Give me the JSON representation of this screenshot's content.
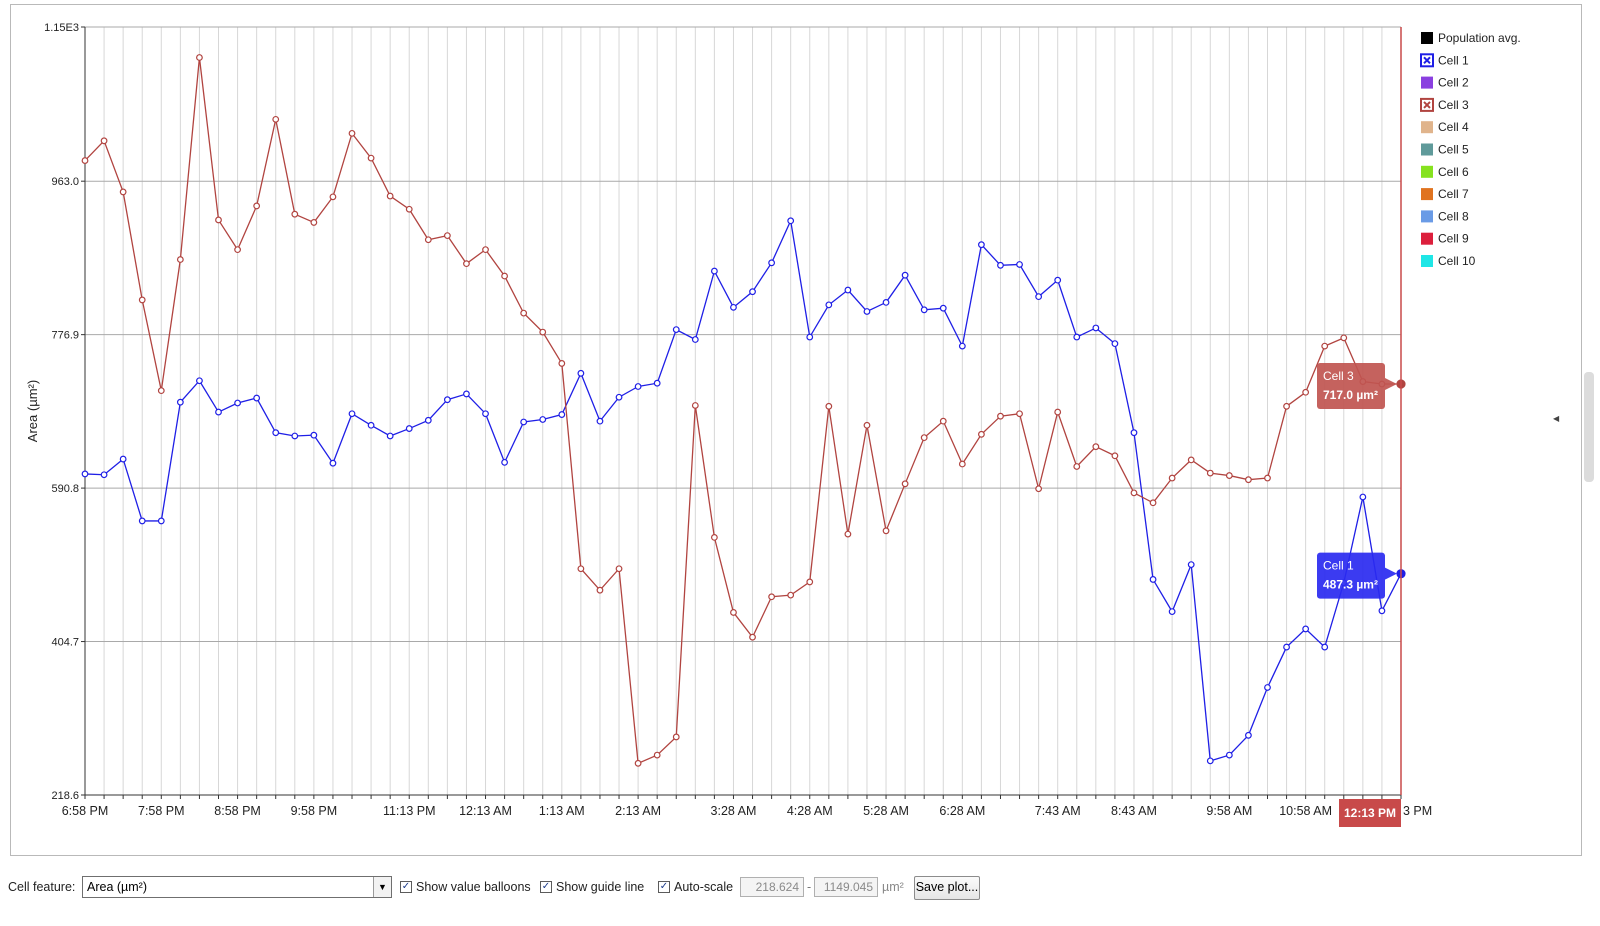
{
  "chart_data": {
    "type": "line",
    "ylabel": "Area (µm²)",
    "ylim": [
      218.6,
      1150.0
    ],
    "yticks": [
      "1.15E3",
      "963.0",
      "776.9",
      "590.8",
      "404.7",
      "218.6"
    ],
    "yticks_values": [
      1150.0,
      963.0,
      776.9,
      590.8,
      404.7,
      218.6
    ],
    "xticks": [
      "6:58 PM",
      "7:58 PM",
      "8:58 PM",
      "9:58 PM",
      "11:13 PM",
      "12:13 AM",
      "1:13 AM",
      "2:13 AM",
      "3:28 AM",
      "4:28 AM",
      "5:28 AM",
      "6:28 AM",
      "7:43 AM",
      "8:43 AM",
      "9:58 AM",
      "10:58 AM",
      "3 PM"
    ],
    "xticks_index": [
      0,
      4,
      8,
      12,
      17,
      21,
      25,
      29,
      34,
      38,
      42,
      46,
      51,
      55,
      60,
      64,
      69
    ],
    "n_points": 70,
    "grid": true,
    "legend_position": "right",
    "series": [
      {
        "name": "Cell 1",
        "color": "#1f1fe6",
        "values": [
          608,
          607,
          626,
          551,
          551,
          695,
          721,
          683,
          694,
          700,
          658,
          654,
          655,
          621,
          681,
          667,
          654,
          663,
          673,
          698,
          705,
          681,
          622,
          671,
          674,
          680,
          730,
          672,
          701,
          714,
          718,
          783,
          771,
          854,
          810,
          829,
          864,
          915,
          774,
          813,
          831,
          805,
          816,
          849,
          807,
          809,
          763,
          886,
          861,
          862,
          823,
          843,
          774,
          785,
          766,
          658,
          480,
          441,
          498,
          260,
          267,
          291,
          349,
          398,
          420,
          398,
          476,
          580,
          442,
          487
        ],
        "highlight": {
          "label": "Cell 1",
          "value": "487.3 µm²"
        }
      },
      {
        "name": "Cell 3",
        "color": "#b14440",
        "values": [
          988,
          1012,
          950,
          819,
          709,
          868,
          1113,
          916,
          880,
          933,
          1038,
          923,
          913,
          944,
          1021,
          991,
          945,
          929,
          892,
          897,
          863,
          880,
          848,
          803,
          780,
          742,
          493,
          467,
          493,
          257,
          267,
          289,
          691,
          531,
          440,
          410,
          459,
          461,
          477,
          690,
          535,
          667,
          539,
          596,
          652,
          672,
          620,
          656,
          678,
          681,
          590,
          683,
          617,
          641,
          630,
          585,
          573,
          603,
          625,
          609,
          606,
          601,
          603,
          690,
          707,
          763,
          773,
          720,
          717,
          717
        ],
        "highlight": {
          "label": "Cell 3",
          "value": "717.0 µm²"
        }
      }
    ],
    "legend": [
      {
        "name": "Population avg.",
        "color": "#000000",
        "style": "fill"
      },
      {
        "name": "Cell 1",
        "color": "#1f1fe6",
        "style": "x"
      },
      {
        "name": "Cell 2",
        "color": "#8a3fe0",
        "style": "fill"
      },
      {
        "name": "Cell 3",
        "color": "#b14440",
        "style": "x"
      },
      {
        "name": "Cell 4",
        "color": "#e0b48c",
        "style": "fill"
      },
      {
        "name": "Cell 5",
        "color": "#5f9a9a",
        "style": "fill"
      },
      {
        "name": "Cell 6",
        "color": "#86e21f",
        "style": "fill"
      },
      {
        "name": "Cell 7",
        "color": "#e0731f",
        "style": "fill"
      },
      {
        "name": "Cell 8",
        "color": "#6a9be6",
        "style": "fill"
      },
      {
        "name": "Cell 9",
        "color": "#dc1f3c",
        "style": "fill"
      },
      {
        "name": "Cell 10",
        "color": "#1fe6e6",
        "style": "fill"
      }
    ],
    "guide_time_label": "12:13 PM",
    "guide_color": "#c84a4a"
  },
  "controls": {
    "cell_feature_label": "Cell feature:",
    "cell_feature_value": "Area (µm²)",
    "show_value_balloons_label": "Show value balloons",
    "show_value_balloons_checked": true,
    "show_guide_line_label": "Show guide line",
    "show_guide_line_checked": true,
    "auto_scale_label": "Auto-scale",
    "auto_scale_checked": true,
    "range_min": "218.624",
    "range_dash": "-",
    "range_max": "1149.045",
    "range_unit": "µm²",
    "save_plot_label": "Save plot..."
  }
}
